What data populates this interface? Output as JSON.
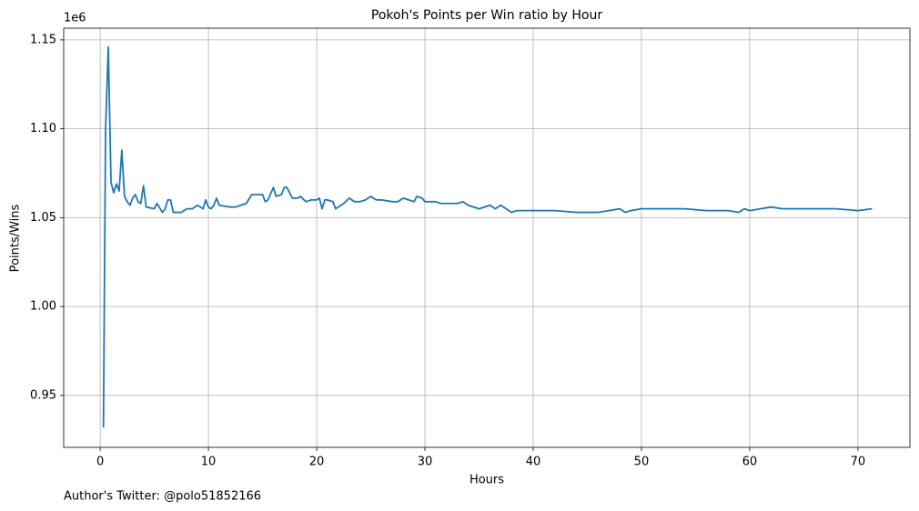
{
  "chart_data": {
    "type": "line",
    "title": "Pokoh's Points per Win ratio by Hour",
    "xlabel": "Hours",
    "ylabel": "Points/Wins",
    "y_offset_label": "1e6",
    "footnote": "Author's Twitter: @polo51852166",
    "xlim": [
      -3.37,
      74.8
    ],
    "ylim": [
      0.9208,
      1.1566
    ],
    "xticks": [
      0,
      10,
      20,
      30,
      40,
      50,
      60,
      70
    ],
    "yticks": [
      0.95,
      {
        "value": 1,
        "label": "1.00"
      },
      1.05,
      {
        "value": 1.1,
        "label": "1.10"
      },
      1.15
    ],
    "grid": true,
    "series": [
      {
        "color": "#1f77b4",
        "x": [
          0.3,
          0.5,
          0.75,
          1.0,
          1.25,
          1.5,
          1.75,
          2.0,
          2.25,
          2.5,
          2.75,
          3.0,
          3.25,
          3.5,
          3.75,
          4.0,
          4.25,
          5,
          5.25,
          5.75,
          6,
          6.25,
          6.5,
          6.75,
          7.5,
          8,
          8.5,
          9,
          9.5,
          9.75,
          10,
          10.25,
          10.5,
          10.75,
          11,
          12,
          12.5,
          13,
          13.5,
          14,
          15,
          15.25,
          15.5,
          16,
          16.25,
          16.75,
          17,
          17.25,
          17.75,
          18.25,
          18.5,
          19,
          19.5,
          20,
          20.25,
          20.5,
          20.75,
          21,
          21.5,
          21.75,
          22.5,
          23,
          23.5,
          24,
          24.5,
          25,
          25.5,
          26,
          27,
          27.5,
          28,
          28.5,
          29,
          29.25,
          29.75,
          30,
          31,
          31.5,
          32,
          33,
          33.5,
          34,
          35,
          36,
          36.5,
          37,
          38,
          38.5,
          40,
          42,
          44,
          46,
          47,
          48,
          48.5,
          49,
          50,
          52,
          54,
          56,
          57,
          58,
          59,
          59.5,
          60,
          61,
          62,
          63,
          64,
          65,
          66,
          68,
          70,
          71.3
        ],
        "values": [
          0.932,
          1.1,
          1.146,
          1.07,
          1.064,
          1.069,
          1.065,
          1.088,
          1.062,
          1.059,
          1.057,
          1.061,
          1.063,
          1.059,
          1.058,
          1.068,
          1.056,
          1.055,
          1.058,
          1.053,
          1.055,
          1.06,
          1.06,
          1.053,
          1.053,
          1.055,
          1.055,
          1.057,
          1.055,
          1.06,
          1.056,
          1.055,
          1.057,
          1.061,
          1.057,
          1.056,
          1.056,
          1.057,
          1.058,
          1.063,
          1.063,
          1.059,
          1.06,
          1.067,
          1.062,
          1.063,
          1.067,
          1.067,
          1.061,
          1.061,
          1.062,
          1.059,
          1.06,
          1.06,
          1.061,
          1.055,
          1.06,
          1.06,
          1.059,
          1.055,
          1.058,
          1.061,
          1.059,
          1.059,
          1.06,
          1.062,
          1.06,
          1.06,
          1.059,
          1.059,
          1.061,
          1.06,
          1.059,
          1.062,
          1.061,
          1.059,
          1.059,
          1.058,
          1.058,
          1.058,
          1.059,
          1.057,
          1.055,
          1.057,
          1.055,
          1.057,
          1.053,
          1.054,
          1.054,
          1.054,
          1.053,
          1.053,
          1.054,
          1.055,
          1.053,
          1.054,
          1.055,
          1.055,
          1.055,
          1.054,
          1.054,
          1.054,
          1.053,
          1.055,
          1.054,
          1.055,
          1.056,
          1.055,
          1.055,
          1.055,
          1.055,
          1.055,
          1.054,
          1.055
        ]
      }
    ]
  }
}
